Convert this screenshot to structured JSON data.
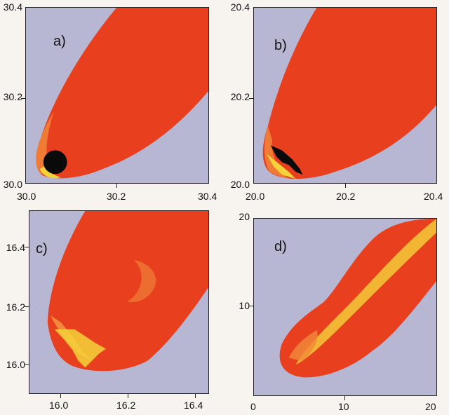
{
  "figure": {
    "panels": [
      {
        "label": "a)",
        "xticks": [
          "30.0",
          "30.2",
          "30.4"
        ],
        "yticks": [
          "30.4",
          "30.2",
          "30.0"
        ]
      },
      {
        "label": "b)",
        "xticks": [
          "20.0",
          "20.2",
          "20.4"
        ],
        "yticks": [
          "20.4",
          "20.2",
          "20.0"
        ]
      },
      {
        "label": "c)",
        "xticks": [
          "16.0",
          "16.2",
          "16.4"
        ],
        "yticks": [
          "16.4",
          "16.2",
          "16.0"
        ]
      },
      {
        "label": "d)",
        "xticks": [
          "0",
          "10",
          "20"
        ],
        "yticks": [
          "20",
          "10"
        ]
      }
    ]
  },
  "colors": {
    "background": "#b8b7d3",
    "plume": "#e8401f",
    "plume_dark": "#d8341a",
    "edge": "#f08a3a",
    "core": "#f4d23a",
    "object": "#0a0a0a"
  }
}
